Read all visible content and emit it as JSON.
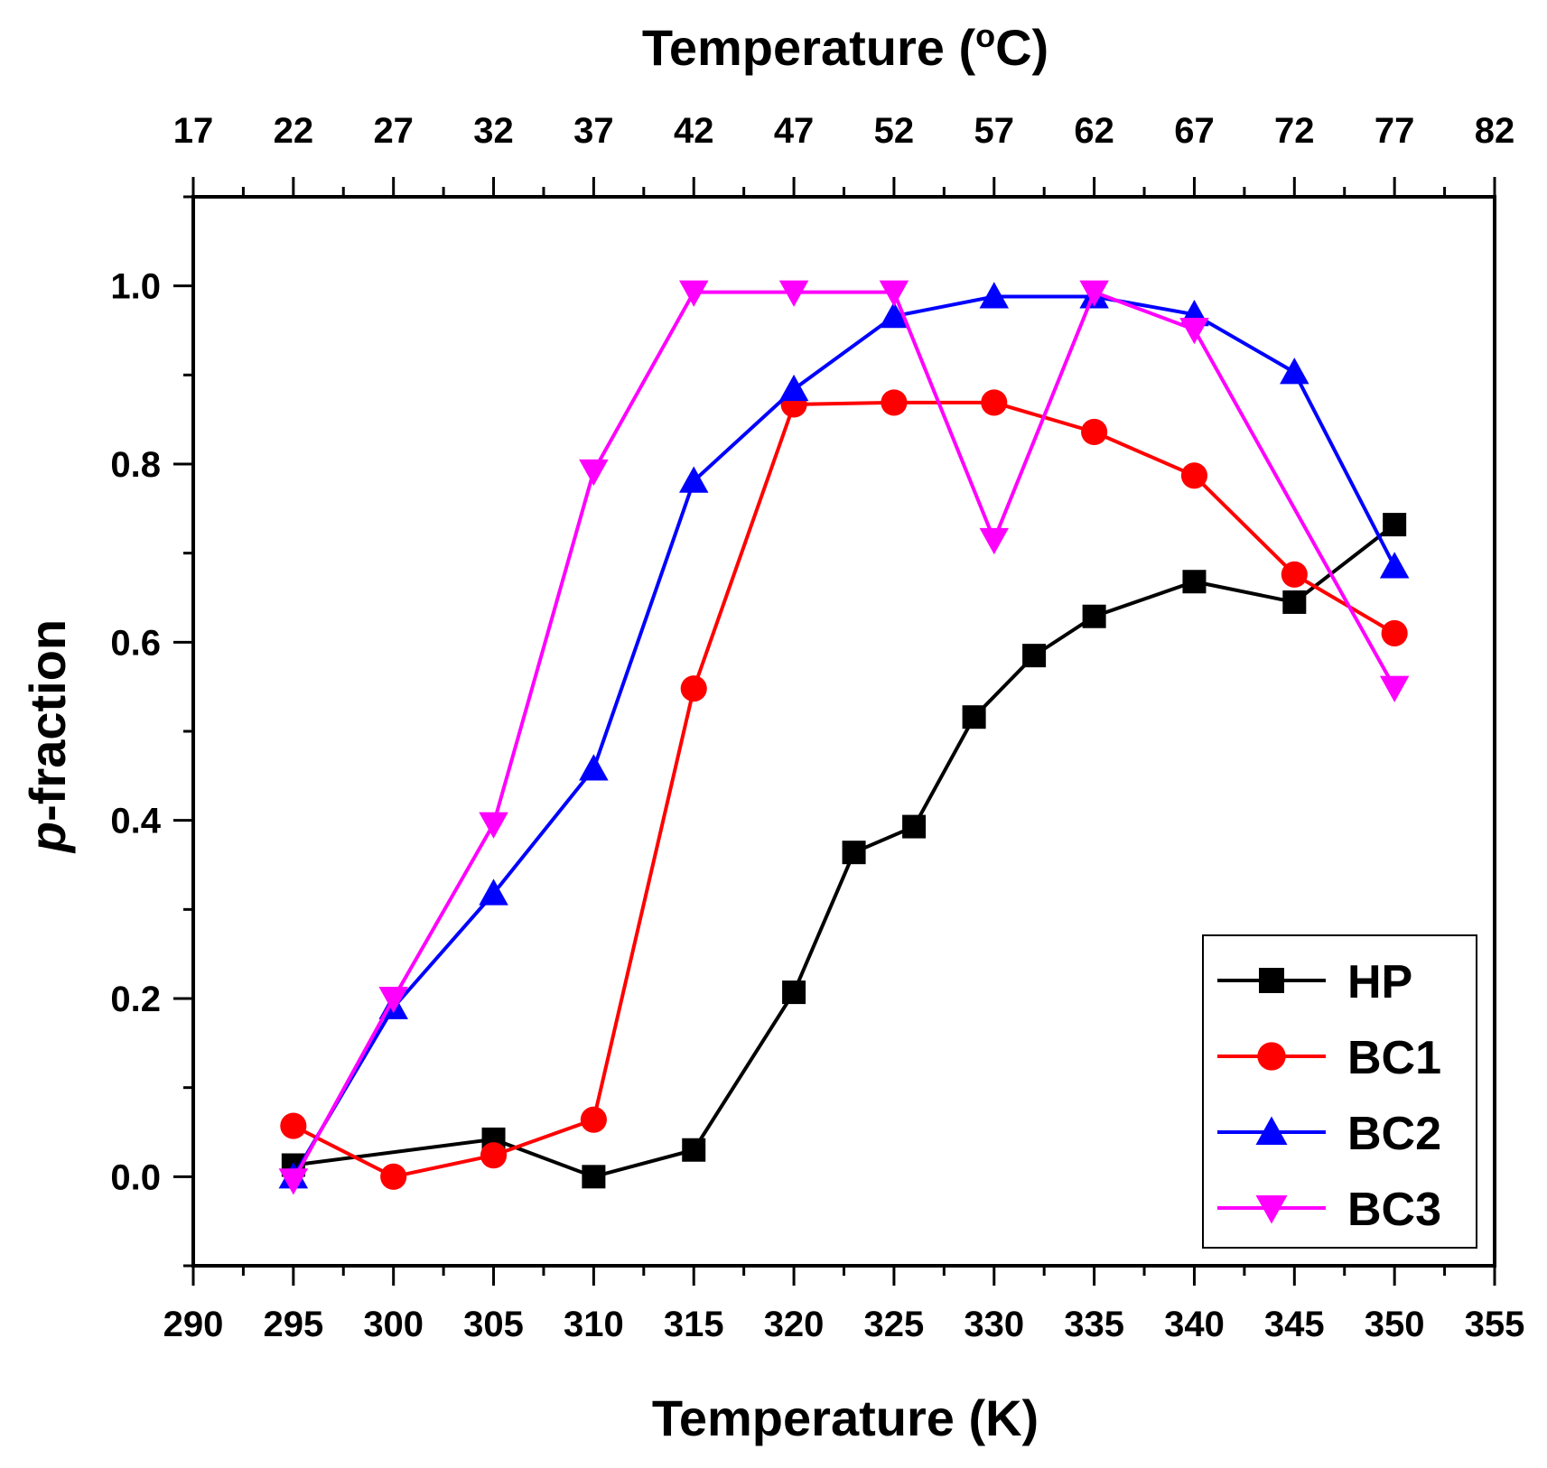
{
  "chart_data": {
    "type": "line",
    "xlabel": "Temperature (K)",
    "x2label": "Temperature (",
    "x2label_sup": "o",
    "x2label_end": "C)",
    "ylabel_italic": "p",
    "ylabel_rest": "-fraction",
    "xlim": [
      290,
      355
    ],
    "ylim": [
      -0.1,
      1.1
    ],
    "x_ticks": [
      290,
      295,
      300,
      305,
      310,
      315,
      320,
      325,
      330,
      335,
      340,
      345,
      350,
      355
    ],
    "x2_ticks": [
      "17",
      "22",
      "27",
      "32",
      "37",
      "42",
      "47",
      "52",
      "57",
      "62",
      "67",
      "72",
      "77",
      "82"
    ],
    "y_ticks": [
      "0.0",
      "0.2",
      "0.4",
      "0.6",
      "0.8",
      "1.0"
    ],
    "y_tick_values": [
      0.0,
      0.2,
      0.4,
      0.6,
      0.8,
      1.0
    ],
    "legend_position": "bottom-right",
    "series": [
      {
        "name": "HP",
        "color": "#000000",
        "marker": "square",
        "x": [
          295,
          305,
          310,
          315,
          320,
          323,
          326,
          329,
          332,
          335,
          340,
          345,
          350
        ],
        "y": [
          0.013,
          0.042,
          0.0,
          0.03,
          0.207,
          0.364,
          0.393,
          0.516,
          0.585,
          0.629,
          0.668,
          0.645,
          0.732
        ]
      },
      {
        "name": "BC1",
        "color": "#ff0000",
        "marker": "circle",
        "x": [
          295,
          300,
          305,
          310,
          315,
          320,
          325,
          330,
          335,
          340,
          345,
          350
        ],
        "y": [
          0.057,
          0.0,
          0.024,
          0.064,
          0.548,
          0.867,
          0.869,
          0.869,
          0.836,
          0.787,
          0.676,
          0.61
        ]
      },
      {
        "name": "BC2",
        "color": "#0000ff",
        "marker": "triangle-up",
        "x": [
          295,
          300,
          305,
          310,
          315,
          320,
          325,
          330,
          335,
          340,
          345,
          350
        ],
        "y": [
          0.0,
          0.19,
          0.318,
          0.458,
          0.781,
          0.884,
          0.966,
          0.988,
          0.988,
          0.968,
          0.903,
          0.685
        ]
      },
      {
        "name": "BC3",
        "color": "#ff00ff",
        "marker": "triangle-down",
        "x": [
          295,
          300,
          305,
          310,
          315,
          320,
          325,
          330,
          335,
          340,
          350
        ],
        "y": [
          -0.004,
          0.2,
          0.396,
          0.792,
          0.993,
          0.993,
          0.993,
          0.715,
          0.993,
          0.951,
          0.549
        ]
      }
    ]
  }
}
